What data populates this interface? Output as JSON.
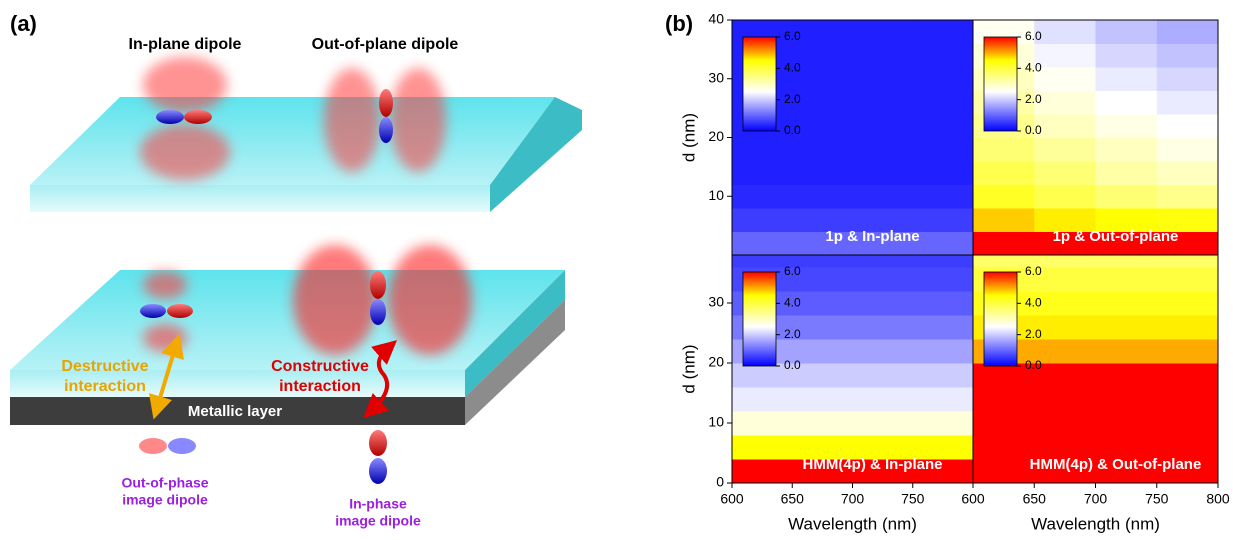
{
  "panel_a": {
    "label": "(a)",
    "in_plane_title": "In-plane dipole",
    "out_of_plane_title": "Out-of-plane dipole",
    "destructive": [
      "Destructive",
      "interaction"
    ],
    "constructive": [
      "Constructive",
      "interaction"
    ],
    "metal": "Metallic layer",
    "out_of_phase": [
      "Out-of-phase",
      "image dipole"
    ],
    "in_phase": [
      "In-phase",
      "image dipole"
    ]
  },
  "panel_b": {
    "label": "(b)"
  },
  "chart_data": [
    {
      "type": "heatmap",
      "title": "1p & In-plane",
      "ylabel": "d (nm)",
      "xlim": [
        600,
        800
      ],
      "ylim": [
        0,
        40
      ],
      "yticks": [
        10,
        20,
        30,
        40
      ],
      "x_edges": [
        600,
        650,
        700,
        750,
        800
      ],
      "y_edges": [
        0,
        4,
        8,
        12,
        16,
        20,
        24,
        28,
        32,
        36,
        40
      ],
      "values": [
        [
          1.0,
          1.0,
          1.0,
          1.0
        ],
        [
          0.6,
          0.6,
          0.6,
          0.6
        ],
        [
          0.4,
          0.4,
          0.4,
          0.4
        ],
        [
          0.3,
          0.3,
          0.3,
          0.3
        ],
        [
          0.3,
          0.3,
          0.3,
          0.3
        ],
        [
          0.3,
          0.3,
          0.3,
          0.3
        ],
        [
          0.3,
          0.3,
          0.3,
          0.3
        ],
        [
          0.3,
          0.3,
          0.3,
          0.3
        ],
        [
          0.3,
          0.3,
          0.3,
          0.3
        ],
        [
          0.3,
          0.3,
          0.3,
          0.3
        ]
      ],
      "clim": [
        0,
        6
      ],
      "colormap": [
        {
          "value": 0,
          "color": "#0000ff"
        },
        {
          "value": 2.5,
          "color": "#ffffff"
        },
        {
          "value": 4.5,
          "color": "#ffff00"
        },
        {
          "value": 6,
          "color": "#ff0000"
        }
      ],
      "cticks": [
        {
          "value": 0,
          "label": "0.0"
        },
        {
          "value": 2,
          "label": "2.0"
        },
        {
          "value": 4,
          "label": "4.0"
        },
        {
          "value": 6,
          "label": "6.0"
        }
      ]
    },
    {
      "type": "heatmap",
      "title": "1p & Out-of-plane",
      "xlim": [
        600,
        800
      ],
      "ylim": [
        0,
        40
      ],
      "x_edges": [
        600,
        650,
        700,
        750,
        800
      ],
      "y_edges": [
        0,
        4,
        8,
        12,
        16,
        20,
        24,
        28,
        32,
        36,
        40
      ],
      "values": [
        [
          6,
          6,
          6,
          6
        ],
        [
          4.8,
          4.6,
          4.5,
          4.4
        ],
        [
          4.2,
          3.9,
          3.6,
          3.4
        ],
        [
          3.9,
          3.6,
          3.2,
          3.0
        ],
        [
          3.6,
          3.3,
          3.0,
          2.7
        ],
        [
          3.4,
          3.0,
          2.7,
          2.5
        ],
        [
          3.2,
          2.8,
          2.5,
          2.3
        ],
        [
          3.0,
          2.6,
          2.3,
          2.1
        ],
        [
          2.8,
          2.4,
          2.1,
          1.9
        ],
        [
          2.6,
          2.2,
          1.9,
          1.7
        ]
      ],
      "clim": [
        0,
        6
      ],
      "colormap": [
        {
          "value": 0,
          "color": "#0000ff"
        },
        {
          "value": 2.5,
          "color": "#ffffff"
        },
        {
          "value": 4.5,
          "color": "#ffff00"
        },
        {
          "value": 6,
          "color": "#ff0000"
        }
      ],
      "cticks": [
        {
          "value": 0,
          "label": "0.0"
        },
        {
          "value": 2,
          "label": "2.0"
        },
        {
          "value": 4,
          "label": "4.0"
        },
        {
          "value": 6,
          "label": "6.0"
        }
      ]
    },
    {
      "type": "heatmap",
      "title": "HMM(4p) & In-plane",
      "ylabel": "d (nm)",
      "xlabel": "Wavelength (nm)",
      "xlim": [
        600,
        800
      ],
      "ylim": [
        0,
        38
      ],
      "xticks": [
        600,
        650,
        700,
        750
      ],
      "yticks": [
        0,
        10,
        20,
        30
      ],
      "x_edges": [
        600,
        650,
        700,
        750,
        800
      ],
      "y_edges": [
        0,
        4,
        8,
        12,
        16,
        20,
        24,
        28,
        32,
        36,
        38
      ],
      "values": [
        [
          6,
          6,
          6,
          6
        ],
        [
          4.5,
          4.5,
          4.5,
          4.5
        ],
        [
          2.8,
          2.8,
          2.8,
          2.8
        ],
        [
          2.3,
          2.3,
          2.3,
          2.3
        ],
        [
          2.0,
          2.0,
          2.0,
          2.0
        ],
        [
          1.6,
          1.6,
          1.6,
          1.6
        ],
        [
          1.2,
          1.2,
          1.2,
          1.2
        ],
        [
          0.9,
          0.9,
          0.9,
          0.9
        ],
        [
          0.7,
          0.7,
          0.7,
          0.7
        ],
        [
          0.6,
          0.6,
          0.6,
          0.6
        ]
      ],
      "clim": [
        0,
        6
      ],
      "colormap": [
        {
          "value": 0,
          "color": "#0000ff"
        },
        {
          "value": 2.5,
          "color": "#ffffff"
        },
        {
          "value": 4.5,
          "color": "#ffff00"
        },
        {
          "value": 6,
          "color": "#ff0000"
        }
      ],
      "cticks": [
        {
          "value": 0,
          "label": "0.0"
        },
        {
          "value": 2,
          "label": "2.0"
        },
        {
          "value": 4,
          "label": "4.0"
        },
        {
          "value": 6,
          "label": "6.0"
        }
      ]
    },
    {
      "type": "heatmap",
      "title": "HMM(4p) & Out-of-plane",
      "xlabel": "Wavelength (nm)",
      "xlim": [
        600,
        800
      ],
      "ylim": [
        0,
        38
      ],
      "xticks": [
        600,
        650,
        700,
        750,
        800
      ],
      "x_edges": [
        600,
        650,
        700,
        750,
        800
      ],
      "y_edges": [
        0,
        4,
        8,
        12,
        16,
        20,
        24,
        28,
        32,
        36,
        38
      ],
      "values": [
        [
          6,
          6,
          6,
          6
        ],
        [
          6,
          6,
          6,
          6
        ],
        [
          6,
          6,
          6,
          6
        ],
        [
          6,
          6,
          6,
          6
        ],
        [
          6,
          6,
          6,
          6
        ],
        [
          5,
          5,
          5,
          5
        ],
        [
          4.6,
          4.6,
          4.6,
          4.6
        ],
        [
          4.3,
          4.3,
          4.3,
          4.3
        ],
        [
          4.0,
          4.0,
          4.0,
          4.0
        ],
        [
          3.7,
          3.7,
          3.7,
          3.7
        ]
      ],
      "clim": [
        0,
        6
      ],
      "colormap": [
        {
          "value": 0,
          "color": "#0000ff"
        },
        {
          "value": 2.5,
          "color": "#ffffff"
        },
        {
          "value": 4.5,
          "color": "#ffff00"
        },
        {
          "value": 6,
          "color": "#ff0000"
        }
      ],
      "cticks": [
        {
          "value": 0,
          "label": "0.0"
        },
        {
          "value": 2,
          "label": "2.0"
        },
        {
          "value": 4,
          "label": "4.0"
        },
        {
          "value": 6,
          "label": "6.0"
        }
      ]
    }
  ]
}
